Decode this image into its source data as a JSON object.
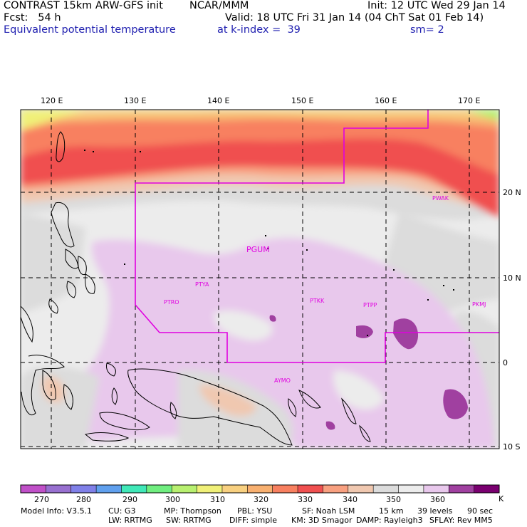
{
  "header": {
    "l1_left": "CONTRAST 15km ARW-GFS init",
    "l1_mid": "NCAR/MMM",
    "l1_right": "Init: 12 UTC Wed 29 Jan 14",
    "l2_left": "Fcst:   54 h",
    "l2_right": "Valid: 18 UTC Fri 31 Jan 14 (04 ChT Sat 01 Feb 14)",
    "l3_left": "Equivalent potential temperature",
    "l3_mid": "at k-index =  39",
    "l3_right": "sm= 2"
  },
  "axes": {
    "lon_labels": [
      "120 E",
      "130 E",
      "140 E",
      "150 E",
      "160 E",
      "170 E"
    ],
    "lat_labels": [
      "20 N",
      "10 N",
      "0",
      "10 S"
    ]
  },
  "stations": [
    "PGUM",
    "PTYA",
    "PTRO",
    "PTKK",
    "PTPP",
    "PKMJ",
    "PWAK",
    "AYMO"
  ],
  "colorbar": {
    "labels": [
      "270",
      "280",
      "290",
      "300",
      "310",
      "320",
      "330",
      "340",
      "350",
      "360"
    ],
    "unit": "K",
    "colors": [
      "#c050c8",
      "#9870d0",
      "#8080e8",
      "#60a0ee",
      "#40e8b8",
      "#70ee80",
      "#b8f070",
      "#f0f078",
      "#f8d080",
      "#f8b070",
      "#f88060",
      "#f05050",
      "#f8a080",
      "#f0c8b0",
      "#dcdcdc",
      "#ececec",
      "#e8c8ec",
      "#a040a0",
      "#7a0070"
    ]
  },
  "footer": {
    "line1": [
      "Model Info: V3.5.1",
      "CU: G3",
      "MP: Thompson",
      "PBL: YSU",
      "SF: Noah LSM",
      "15 km",
      "39 levels",
      "90 sec"
    ],
    "line2": [
      "LW: RRTMG",
      "SW: RRTMG",
      "DIFF: simple",
      "KM: 3D Smagor",
      "DAMP: Rayleigh3",
      "SFLAY: Rev MM5"
    ]
  }
}
